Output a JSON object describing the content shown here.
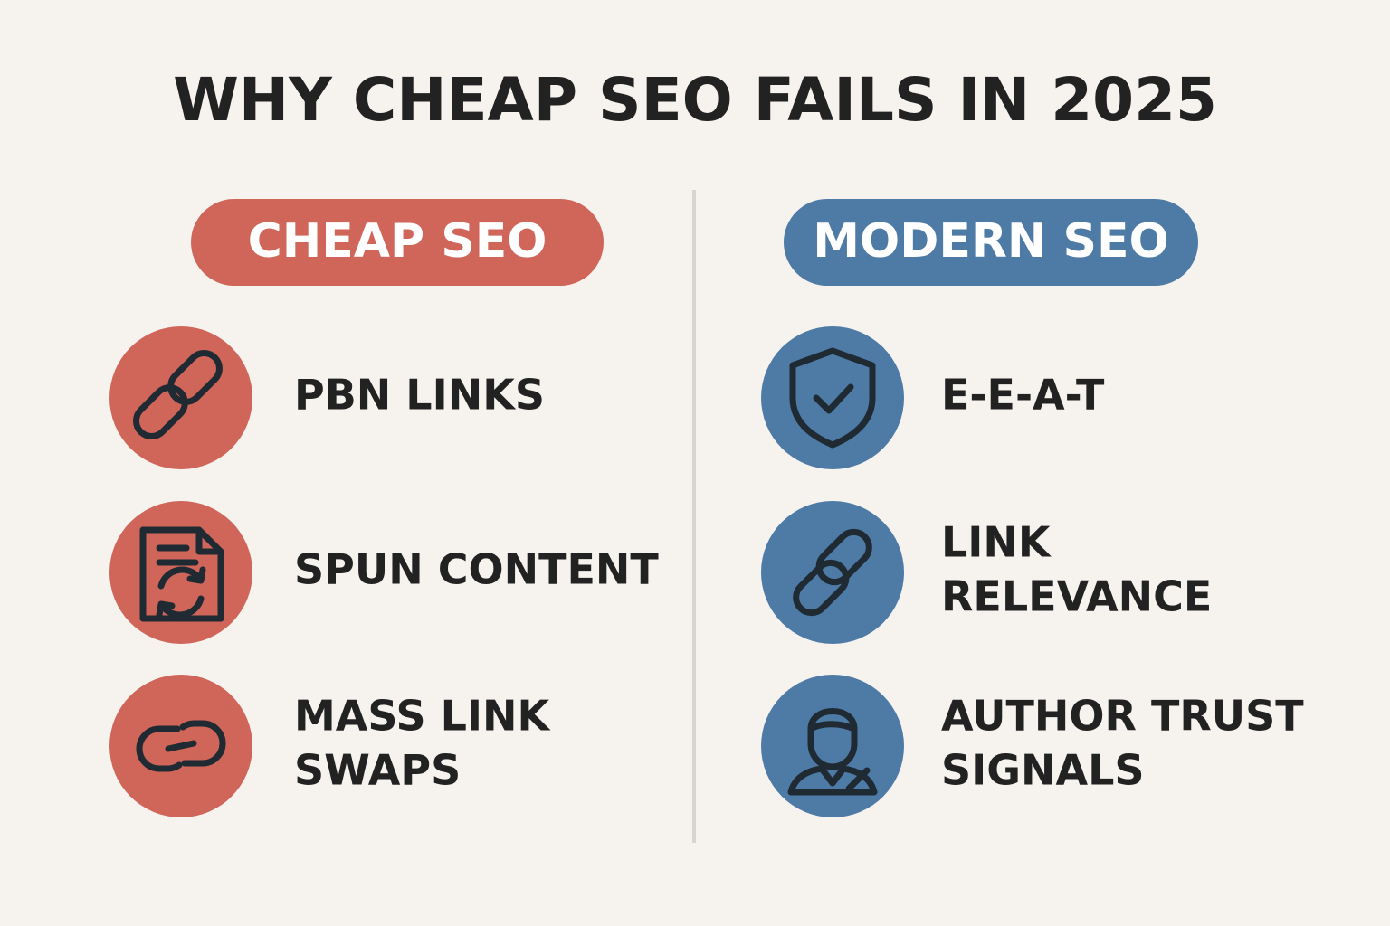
{
  "title": "WHY CHEAP SEO FAILS IN 2025",
  "columns": [
    {
      "heading": "CHEAP SEO",
      "items": [
        {
          "lines": [
            "PBN LINKS"
          ]
        },
        {
          "lines": [
            "SPUN CONTENT"
          ]
        },
        {
          "lines": [
            "MASS LINK",
            "SWAPS"
          ]
        }
      ]
    },
    {
      "heading": "MODERN SEO",
      "items": [
        {
          "lines": [
            "E-E-A-T"
          ]
        },
        {
          "lines": [
            "LINK",
            "RELEVANCE"
          ]
        },
        {
          "lines": [
            "AUTHOR TRUST",
            "SIGNALS"
          ]
        }
      ]
    }
  ]
}
